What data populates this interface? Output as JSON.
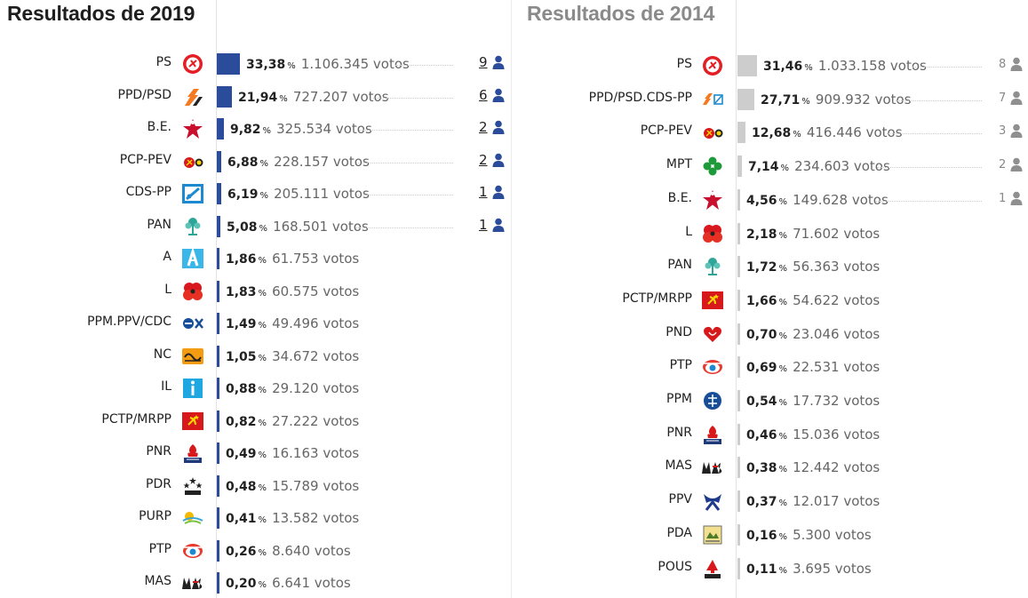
{
  "colors": {
    "bar_2019": "#2b4b9b",
    "bar_2014": "#cdcdcd",
    "person_2019": "#2b4b9b",
    "person_2014": "#8f8f8f"
  },
  "chart_data": [
    {
      "type": "bar",
      "orientation": "horizontal",
      "title": "Resultados de 2019",
      "pct_unit": "%",
      "votes_unit": "votos",
      "xlim": [
        0,
        36
      ],
      "parties": [
        {
          "name": "PS",
          "logo": "ps-logo",
          "pct": 33.38,
          "pct_label": "33,38",
          "votes_label": "1.106.345",
          "seats": "9"
        },
        {
          "name": "PPD/PSD",
          "logo": "ppd-psd-logo",
          "pct": 21.94,
          "pct_label": "21,94",
          "votes_label": "727.207",
          "seats": "6"
        },
        {
          "name": "B.E.",
          "logo": "be-logo",
          "pct": 9.82,
          "pct_label": "9,82",
          "votes_label": "325.534",
          "seats": "2"
        },
        {
          "name": "PCP-PEV",
          "logo": "pcp-pev-logo",
          "pct": 6.88,
          "pct_label": "6,88",
          "votes_label": "228.157",
          "seats": "2"
        },
        {
          "name": "CDS-PP",
          "logo": "cds-pp-logo",
          "pct": 6.19,
          "pct_label": "6,19",
          "votes_label": "205.111",
          "seats": "1"
        },
        {
          "name": "PAN",
          "logo": "pan-logo",
          "pct": 5.08,
          "pct_label": "5,08",
          "votes_label": "168.501",
          "seats": "1"
        },
        {
          "name": "A",
          "logo": "a-logo",
          "pct": 1.86,
          "pct_label": "1,86",
          "votes_label": "61.753",
          "seats": ""
        },
        {
          "name": "L",
          "logo": "l-logo",
          "pct": 1.83,
          "pct_label": "1,83",
          "votes_label": "60.575",
          "seats": ""
        },
        {
          "name": "PPM.PPV/CDC",
          "logo": "ppm-ppv-cdc-logo",
          "pct": 1.49,
          "pct_label": "1,49",
          "votes_label": "49.496",
          "seats": ""
        },
        {
          "name": "NC",
          "logo": "nc-logo",
          "pct": 1.05,
          "pct_label": "1,05",
          "votes_label": "34.672",
          "seats": ""
        },
        {
          "name": "IL",
          "logo": "il-logo",
          "pct": 0.88,
          "pct_label": "0,88",
          "votes_label": "29.120",
          "seats": ""
        },
        {
          "name": "PCTP/MRPP",
          "logo": "pctp-mrpp-logo",
          "pct": 0.82,
          "pct_label": "0,82",
          "votes_label": "27.222",
          "seats": ""
        },
        {
          "name": "PNR",
          "logo": "pnr-logo",
          "pct": 0.49,
          "pct_label": "0,49",
          "votes_label": "16.163",
          "seats": ""
        },
        {
          "name": "PDR",
          "logo": "pdr-logo",
          "pct": 0.48,
          "pct_label": "0,48",
          "votes_label": "15.789",
          "seats": ""
        },
        {
          "name": "PURP",
          "logo": "purp-logo",
          "pct": 0.41,
          "pct_label": "0,41",
          "votes_label": "13.582",
          "seats": ""
        },
        {
          "name": "PTP",
          "logo": "ptp-logo",
          "pct": 0.26,
          "pct_label": "0,26",
          "votes_label": "8.640",
          "seats": ""
        },
        {
          "name": "MAS",
          "logo": "mas-logo",
          "pct": 0.2,
          "pct_label": "0,20",
          "votes_label": "6.641",
          "seats": ""
        }
      ]
    },
    {
      "type": "bar",
      "orientation": "horizontal",
      "title": "Resultados de 2014",
      "pct_unit": "%",
      "votes_unit": "votos",
      "xlim": [
        0,
        36
      ],
      "parties": [
        {
          "name": "PS",
          "logo": "ps-logo",
          "pct": 31.46,
          "pct_label": "31,46",
          "votes_label": "1.033.158",
          "seats": "8"
        },
        {
          "name": "PPD/PSD.CDS-PP",
          "logo": "ppd-psd-cds-pp-logo",
          "pct": 27.71,
          "pct_label": "27,71",
          "votes_label": "909.932",
          "seats": "7"
        },
        {
          "name": "PCP-PEV",
          "logo": "pcp-pev-logo",
          "pct": 12.68,
          "pct_label": "12,68",
          "votes_label": "416.446",
          "seats": "3"
        },
        {
          "name": "MPT",
          "logo": "mpt-logo",
          "pct": 7.14,
          "pct_label": "7,14",
          "votes_label": "234.603",
          "seats": "2"
        },
        {
          "name": "B.E.",
          "logo": "be-logo",
          "pct": 4.56,
          "pct_label": "4,56",
          "votes_label": "149.628",
          "seats": "1"
        },
        {
          "name": "L",
          "logo": "l-logo",
          "pct": 2.18,
          "pct_label": "2,18",
          "votes_label": "71.602",
          "seats": ""
        },
        {
          "name": "PAN",
          "logo": "pan-logo",
          "pct": 1.72,
          "pct_label": "1,72",
          "votes_label": "56.363",
          "seats": ""
        },
        {
          "name": "PCTP/MRPP",
          "logo": "pctp-mrpp-logo",
          "pct": 1.66,
          "pct_label": "1,66",
          "votes_label": "54.622",
          "seats": ""
        },
        {
          "name": "PND",
          "logo": "pnd-logo",
          "pct": 0.7,
          "pct_label": "0,70",
          "votes_label": "23.046",
          "seats": ""
        },
        {
          "name": "PTP",
          "logo": "ptp-logo",
          "pct": 0.69,
          "pct_label": "0,69",
          "votes_label": "22.531",
          "seats": ""
        },
        {
          "name": "PPM",
          "logo": "ppm-logo",
          "pct": 0.54,
          "pct_label": "0,54",
          "votes_label": "17.732",
          "seats": ""
        },
        {
          "name": "PNR",
          "logo": "pnr-logo",
          "pct": 0.46,
          "pct_label": "0,46",
          "votes_label": "15.036",
          "seats": ""
        },
        {
          "name": "MAS",
          "logo": "mas-logo",
          "pct": 0.38,
          "pct_label": "0,38",
          "votes_label": "12.442",
          "seats": ""
        },
        {
          "name": "PPV",
          "logo": "ppv-logo",
          "pct": 0.37,
          "pct_label": "0,37",
          "votes_label": "12.017",
          "seats": ""
        },
        {
          "name": "PDA",
          "logo": "pda-logo",
          "pct": 0.16,
          "pct_label": "0,16",
          "votes_label": "5.300",
          "seats": ""
        },
        {
          "name": "POUS",
          "logo": "pous-logo",
          "pct": 0.11,
          "pct_label": "0,11",
          "votes_label": "3.695",
          "seats": ""
        }
      ]
    }
  ]
}
